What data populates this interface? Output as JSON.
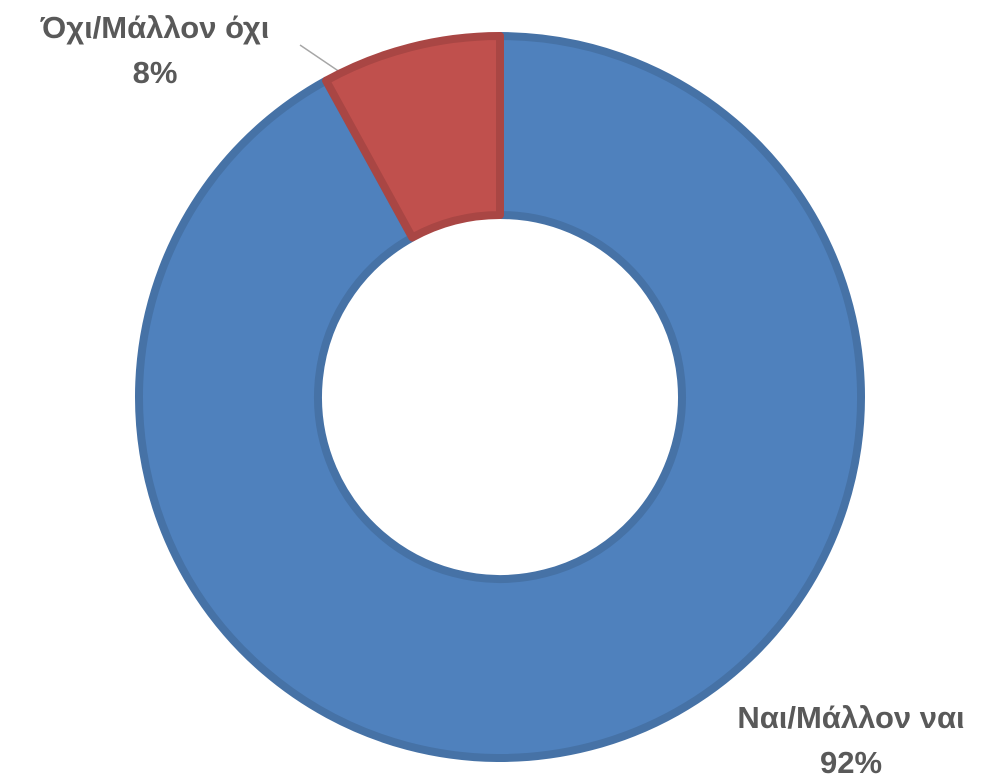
{
  "chart_data": {
    "type": "donut",
    "categories": [
      "Ναι/Μάλλον ναι",
      "Όχι/Μάλλον όχι"
    ],
    "values": [
      92,
      8
    ],
    "value_labels": [
      "92%",
      "8%"
    ],
    "colors": [
      "#4f81bd",
      "#c0504d"
    ]
  }
}
